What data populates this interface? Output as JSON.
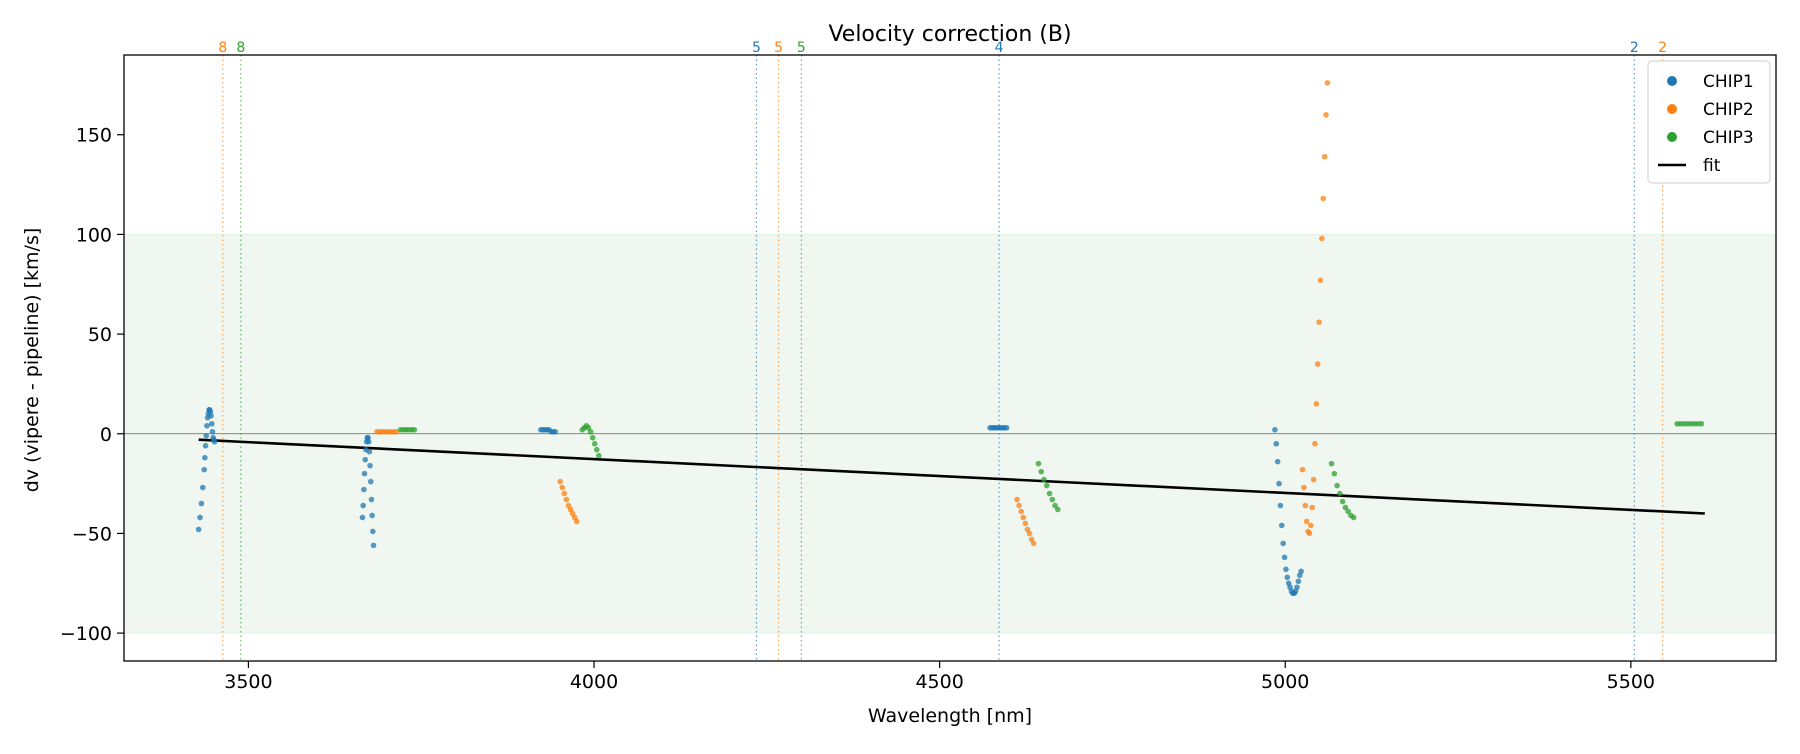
{
  "chart_data": {
    "type": "scatter",
    "title": "Velocity correction (B)",
    "xlabel": "Wavelength [nm]",
    "ylabel": "dv (vipere - pipeline) [km/s]",
    "xlim": [
      3320,
      5710
    ],
    "ylim": [
      -114,
      190
    ],
    "xticks": [
      3500,
      4000,
      4500,
      5000,
      5500
    ],
    "yticks": [
      -100,
      -50,
      0,
      50,
      100,
      150
    ],
    "tick_labels_x": [
      "3500",
      "4000",
      "4500",
      "5000",
      "5500"
    ],
    "tick_labels_y": [
      "−100",
      "−50",
      "0",
      "50",
      "100",
      "150"
    ],
    "band": {
      "ymin": -100,
      "ymax": 100,
      "color": "#d7ecd9"
    },
    "zero_line": 0,
    "colors": {
      "CHIP1": "#1f77b4",
      "CHIP2": "#ff7f0e",
      "CHIP3": "#2ca02c",
      "fit": "#000000"
    },
    "legend": {
      "location": "top-right",
      "entries": [
        {
          "label": "CHIP1",
          "color": "#1f77b4",
          "kind": "marker"
        },
        {
          "label": "CHIP2",
          "color": "#ff7f0e",
          "kind": "marker"
        },
        {
          "label": "CHIP3",
          "color": "#2ca02c",
          "kind": "marker"
        },
        {
          "label": "fit",
          "color": "#000000",
          "kind": "line"
        }
      ]
    },
    "order_markers": [
      {
        "x": 3463,
        "label": "8",
        "chip": "CHIP2"
      },
      {
        "x": 3489,
        "label": "8",
        "chip": "CHIP3"
      },
      {
        "x": 4235,
        "label": "5",
        "chip": "CHIP1"
      },
      {
        "x": 4267,
        "label": "5",
        "chip": "CHIP2"
      },
      {
        "x": 4300,
        "label": "5",
        "chip": "CHIP3"
      },
      {
        "x": 4586,
        "label": "4",
        "chip": "CHIP1"
      },
      {
        "x": 5505,
        "label": "2",
        "chip": "CHIP1"
      },
      {
        "x": 5546,
        "label": "2",
        "chip": "CHIP2"
      }
    ],
    "fit": {
      "x": [
        3428,
        5607
      ],
      "y": [
        -3,
        -40
      ]
    },
    "series": [
      {
        "name": "CHIP1",
        "segments": [
          {
            "x": [
              3428,
              3430,
              3432,
              3434,
              3436,
              3437,
              3438,
              3439,
              3440,
              3441,
              3442,
              3443,
              3444,
              3445,
              3446,
              3447,
              3448,
              3449,
              3450,
              3451
            ],
            "y": [
              -48,
              -42,
              -35,
              -27,
              -18,
              -12,
              -6,
              -1,
              4,
              8,
              10,
              12,
              12,
              11,
              9,
              5,
              1,
              -2,
              -3,
              -4
            ]
          },
          {
            "x": [
              3665,
              3666,
              3667,
              3668,
              3669,
              3670,
              3671,
              3672,
              3673,
              3674,
              3675,
              3676,
              3677,
              3678,
              3679,
              3680,
              3681
            ],
            "y": [
              -42,
              -36,
              -28,
              -20,
              -13,
              -8,
              -4,
              -2,
              -2,
              -4,
              -9,
              -16,
              -24,
              -33,
              -41,
              -49,
              -56
            ]
          },
          {
            "x": [
              3923,
              3926,
              3929,
              3932,
              3935,
              3938,
              3941,
              3944
            ],
            "y": [
              2,
              2,
              2,
              2,
              2,
              1,
              1,
              1
            ]
          },
          {
            "x": [
              4573,
              4576,
              4579,
              4582,
              4585,
              4588,
              4591,
              4594,
              4597
            ],
            "y": [
              3,
              3,
              3,
              3,
              3,
              3,
              3,
              3,
              3
            ]
          },
          {
            "x": [
              4985,
              4987,
              4989,
              4991,
              4993,
              4995,
              4997,
              4999,
              5001,
              5003,
              5005,
              5007,
              5009,
              5011,
              5013,
              5015,
              5017,
              5019,
              5021,
              5023
            ],
            "y": [
              2,
              -5,
              -14,
              -25,
              -36,
              -46,
              -55,
              -62,
              -68,
              -72,
              -75,
              -77,
              -79,
              -80,
              -80,
              -79,
              -77,
              -74,
              -71,
              -69
            ]
          }
        ]
      },
      {
        "name": "CHIP2",
        "segments": [
          {
            "x": [
              3686,
              3690,
              3694,
              3698,
              3702,
              3706,
              3710,
              3714
            ],
            "y": [
              1,
              1,
              1,
              1,
              1,
              1,
              1,
              1
            ]
          },
          {
            "x": [
              3951,
              3954,
              3957,
              3960,
              3963,
              3966,
              3969,
              3972,
              3975
            ],
            "y": [
              -24,
              -27,
              -30,
              -33,
              -36,
              -38,
              -40,
              -42,
              -44
            ]
          },
          {
            "x": [
              4612,
              4615,
              4618,
              4621,
              4624,
              4627,
              4630,
              4633,
              4636
            ],
            "y": [
              -33,
              -36,
              -39,
              -42,
              -45,
              -48,
              -50,
              -53,
              -55
            ]
          },
          {
            "x": [
              5025,
              5027,
              5029,
              5031,
              5033,
              5035,
              5037,
              5039,
              5041,
              5043,
              5045,
              5047,
              5049,
              5051,
              5053,
              5055,
              5057,
              5059,
              5061
            ],
            "y": [
              -18,
              -27,
              -36,
              -44,
              -49,
              -50,
              -46,
              -37,
              -23,
              -5,
              15,
              35,
              56,
              77,
              98,
              118,
              139,
              160,
              176
            ]
          }
        ]
      },
      {
        "name": "CHIP3",
        "segments": [
          {
            "x": [
              3720,
              3724,
              3728,
              3732,
              3736,
              3740
            ],
            "y": [
              2,
              2,
              2,
              2,
              2,
              2
            ]
          },
          {
            "x": [
              3983,
              3986,
              3989,
              3992,
              3995,
              3998,
              4001,
              4004,
              4007
            ],
            "y": [
              2,
              3,
              4,
              3,
              1,
              -2,
              -5,
              -8,
              -11
            ]
          },
          {
            "x": [
              4643,
              4647,
              4651,
              4655,
              4659,
              4663,
              4667,
              4671
            ],
            "y": [
              -15,
              -19,
              -23,
              -26,
              -30,
              -33,
              -36,
              -38
            ]
          },
          {
            "x": [
              5067,
              5071,
              5075,
              5079,
              5083,
              5087,
              5091,
              5095,
              5099
            ],
            "y": [
              -15,
              -20,
              -26,
              -30,
              -34,
              -37,
              -39,
              -41,
              -42
            ]
          },
          {
            "x": [
              5567,
              5572,
              5577,
              5582,
              5587,
              5592,
              5597,
              5602
            ],
            "y": [
              5,
              5,
              5,
              5,
              5,
              5,
              5,
              5
            ]
          }
        ]
      }
    ]
  }
}
